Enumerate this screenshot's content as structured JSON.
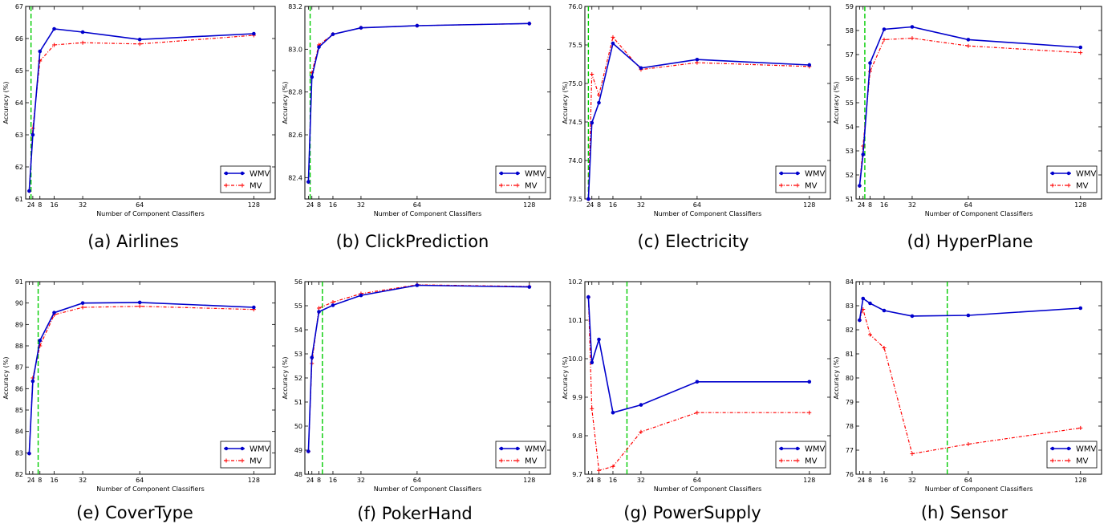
{
  "colors": {
    "wmv": "#0000cc",
    "mv": "#ff0000",
    "vline": "#00cc00",
    "axis": "#000000"
  },
  "chart_data": [
    {
      "type": "line",
      "caption": "(a) Airlines",
      "xlabel": "Number of Component Classifiers",
      "ylabel": "Accuracy (%)",
      "xlim": [
        0,
        140
      ],
      "ylim": [
        61,
        67
      ],
      "xticks": [
        2,
        4,
        8,
        16,
        32,
        64,
        128
      ],
      "xtick_labels": [
        "2",
        "4",
        "8",
        "16",
        "32",
        "64",
        "128"
      ],
      "yticks": [
        61,
        62,
        63,
        64,
        65,
        66,
        67
      ],
      "ytick_labels": [
        "61",
        "62",
        "63",
        "64",
        "65",
        "66",
        "67"
      ],
      "vline": 3,
      "legend": "lower-right",
      "x": [
        2,
        4,
        8,
        16,
        32,
        64,
        128
      ],
      "series": [
        {
          "name": "WMV",
          "values": [
            61.25,
            63.0,
            65.6,
            66.3,
            66.2,
            65.97,
            66.15
          ]
        },
        {
          "name": "MV",
          "values": [
            61.25,
            63.2,
            65.3,
            65.8,
            65.87,
            65.83,
            66.1
          ]
        }
      ]
    },
    {
      "type": "line",
      "caption": "(b) ClickPrediction",
      "xlabel": "Number of Component Classifiers",
      "ylabel": "Accuracy (%)",
      "xlim": [
        0,
        140
      ],
      "ylim": [
        82.3,
        83.2
      ],
      "xticks": [
        2,
        4,
        8,
        16,
        32,
        64,
        128
      ],
      "xtick_labels": [
        "2",
        "4",
        "8",
        "16",
        "32",
        "64",
        "128"
      ],
      "yticks": [
        82.4,
        82.6,
        82.8,
        83.0,
        83.2
      ],
      "ytick_labels": [
        "82.4",
        "82.6",
        "82.8",
        "83.0",
        "83.2"
      ],
      "vline": 3,
      "legend": "lower-right",
      "x": [
        2,
        4,
        8,
        16,
        32,
        64,
        128
      ],
      "series": [
        {
          "name": "WMV",
          "values": [
            82.38,
            82.87,
            83.01,
            83.07,
            83.1,
            83.11,
            83.12
          ]
        },
        {
          "name": "MV",
          "values": [
            82.38,
            82.89,
            83.02,
            83.07,
            83.1,
            83.11,
            83.12
          ]
        }
      ]
    },
    {
      "type": "line",
      "caption": "(c) Electricity",
      "xlabel": "Number of Component Classifiers",
      "ylabel": "Accuracy (%)",
      "xlim": [
        0,
        140
      ],
      "ylim": [
        73.5,
        76.0
      ],
      "xticks": [
        2,
        4,
        8,
        16,
        32,
        64,
        128
      ],
      "xtick_labels": [
        "2",
        "4",
        "8",
        "16",
        "32",
        "64",
        "128"
      ],
      "yticks": [
        73.5,
        74.0,
        74.5,
        75.0,
        75.5,
        76.0
      ],
      "ytick_labels": [
        "73.5",
        "74.0",
        "74.5",
        "75.0",
        "75.5",
        "76.0"
      ],
      "vline": 2,
      "legend": "lower-right",
      "x": [
        2,
        4,
        8,
        16,
        32,
        64,
        128
      ],
      "series": [
        {
          "name": "WMV",
          "values": [
            73.5,
            74.49,
            74.75,
            75.52,
            75.2,
            75.31,
            75.24
          ]
        },
        {
          "name": "MV",
          "values": [
            73.5,
            75.12,
            74.85,
            75.6,
            75.18,
            75.27,
            75.22
          ]
        }
      ]
    },
    {
      "type": "line",
      "caption": "(d) HyperPlane",
      "xlabel": "Number of Component Classifiers",
      "ylabel": "Accuracy (%)",
      "xlim": [
        0,
        140
      ],
      "ylim": [
        51,
        59
      ],
      "xticks": [
        2,
        4,
        8,
        16,
        32,
        64,
        128
      ],
      "xtick_labels": [
        "2",
        "4",
        "8",
        "16",
        "32",
        "64",
        "128"
      ],
      "yticks": [
        51,
        52,
        53,
        54,
        55,
        56,
        57,
        58,
        59
      ],
      "ytick_labels": [
        "51",
        "52",
        "53",
        "54",
        "55",
        "56",
        "57",
        "58",
        "59"
      ],
      "vline": 5,
      "legend": "lower-right",
      "x": [
        2,
        4,
        8,
        16,
        32,
        64,
        128
      ],
      "series": [
        {
          "name": "WMV",
          "values": [
            51.55,
            52.85,
            56.65,
            58.05,
            58.15,
            57.62,
            57.3
          ]
        },
        {
          "name": "MV",
          "values": [
            51.55,
            53.2,
            56.3,
            57.62,
            57.68,
            57.36,
            57.08
          ]
        }
      ]
    },
    {
      "type": "line",
      "caption": "(e) CoverType",
      "xlabel": "Number of Component Classifiers",
      "ylabel": "Accuracy (%)",
      "xlim": [
        0,
        140
      ],
      "ylim": [
        82,
        91
      ],
      "xticks": [
        2,
        4,
        8,
        16,
        32,
        64,
        128
      ],
      "xtick_labels": [
        "2",
        "4",
        "8",
        "16",
        "32",
        "64",
        "128"
      ],
      "yticks": [
        82,
        83,
        84,
        85,
        86,
        87,
        88,
        89,
        90,
        91
      ],
      "ytick_labels": [
        "82",
        "83",
        "84",
        "85",
        "86",
        "87",
        "88",
        "89",
        "90",
        "91"
      ],
      "vline": 7,
      "legend": "lower-right",
      "x": [
        2,
        4,
        8,
        16,
        32,
        64,
        128
      ],
      "series": [
        {
          "name": "WMV",
          "values": [
            82.97,
            86.35,
            88.25,
            89.55,
            90.0,
            90.03,
            89.8
          ]
        },
        {
          "name": "MV",
          "values": [
            82.97,
            86.5,
            88.0,
            89.45,
            89.8,
            89.85,
            89.7
          ]
        }
      ]
    },
    {
      "type": "line",
      "caption": "(f) PokerHand",
      "xlabel": "Number of Component Classifiers",
      "ylabel": "Accuracy (%)",
      "xlim": [
        0,
        140
      ],
      "ylim": [
        48,
        56
      ],
      "xticks": [
        2,
        4,
        8,
        16,
        32,
        64,
        128
      ],
      "xtick_labels": [
        "2",
        "4",
        "8",
        "16",
        "32",
        "64",
        "128"
      ],
      "yticks": [
        48,
        49,
        50,
        51,
        52,
        53,
        54,
        55,
        56
      ],
      "ytick_labels": [
        "48",
        "49",
        "50",
        "51",
        "52",
        "53",
        "54",
        "55",
        "56"
      ],
      "vline": 10,
      "legend": "lower-right",
      "x": [
        2,
        4,
        8,
        16,
        32,
        64,
        128
      ],
      "series": [
        {
          "name": "WMV",
          "values": [
            48.95,
            52.85,
            54.75,
            55.02,
            55.43,
            55.85,
            55.78
          ]
        },
        {
          "name": "MV",
          "values": [
            48.95,
            52.6,
            54.9,
            55.15,
            55.5,
            55.87,
            55.8
          ]
        }
      ]
    },
    {
      "type": "line",
      "caption": "(g) PowerSupply",
      "xlabel": "Number of Component Classifiers",
      "ylabel": "Accuracy (%)",
      "xlim": [
        0,
        140
      ],
      "ylim": [
        9.7,
        10.2
      ],
      "xticks": [
        2,
        4,
        8,
        16,
        32,
        64,
        128
      ],
      "xtick_labels": [
        "2",
        "4",
        "8",
        "16",
        "32",
        "64",
        "128"
      ],
      "yticks": [
        9.7,
        9.8,
        9.9,
        10.0,
        10.1,
        10.2
      ],
      "ytick_labels": [
        "9.7",
        "9.8",
        "9.9",
        "10.0",
        "10.1",
        "10.2"
      ],
      "vline": 24,
      "legend": "lower-right",
      "x": [
        2,
        4,
        8,
        16,
        32,
        64,
        128
      ],
      "series": [
        {
          "name": "WMV",
          "values": [
            10.16,
            9.99,
            10.05,
            9.86,
            9.88,
            9.94,
            9.94
          ]
        },
        {
          "name": "MV",
          "values": [
            10.16,
            9.87,
            9.71,
            9.72,
            9.81,
            9.86,
            9.86
          ]
        }
      ]
    },
    {
      "type": "line",
      "caption": "(h) Sensor",
      "xlabel": "Number of Component Classifiers",
      "ylabel": "Accuracy (%)",
      "xlim": [
        0,
        140
      ],
      "ylim": [
        76,
        84
      ],
      "xticks": [
        2,
        4,
        8,
        16,
        32,
        64,
        128
      ],
      "xtick_labels": [
        "2",
        "4",
        "8",
        "16",
        "32",
        "64",
        "128"
      ],
      "yticks": [
        76,
        77,
        78,
        79,
        80,
        81,
        82,
        83,
        84
      ],
      "ytick_labels": [
        "76",
        "77",
        "78",
        "79",
        "80",
        "81",
        "82",
        "83",
        "84"
      ],
      "vline": 52,
      "legend": "lower-right",
      "x": [
        2,
        4,
        8,
        16,
        32,
        64,
        128
      ],
      "series": [
        {
          "name": "WMV",
          "values": [
            82.4,
            83.3,
            83.1,
            82.8,
            82.57,
            82.6,
            82.9
          ]
        },
        {
          "name": "MV",
          "values": [
            82.4,
            82.85,
            81.8,
            81.25,
            76.85,
            77.25,
            77.92
          ]
        }
      ]
    }
  ]
}
